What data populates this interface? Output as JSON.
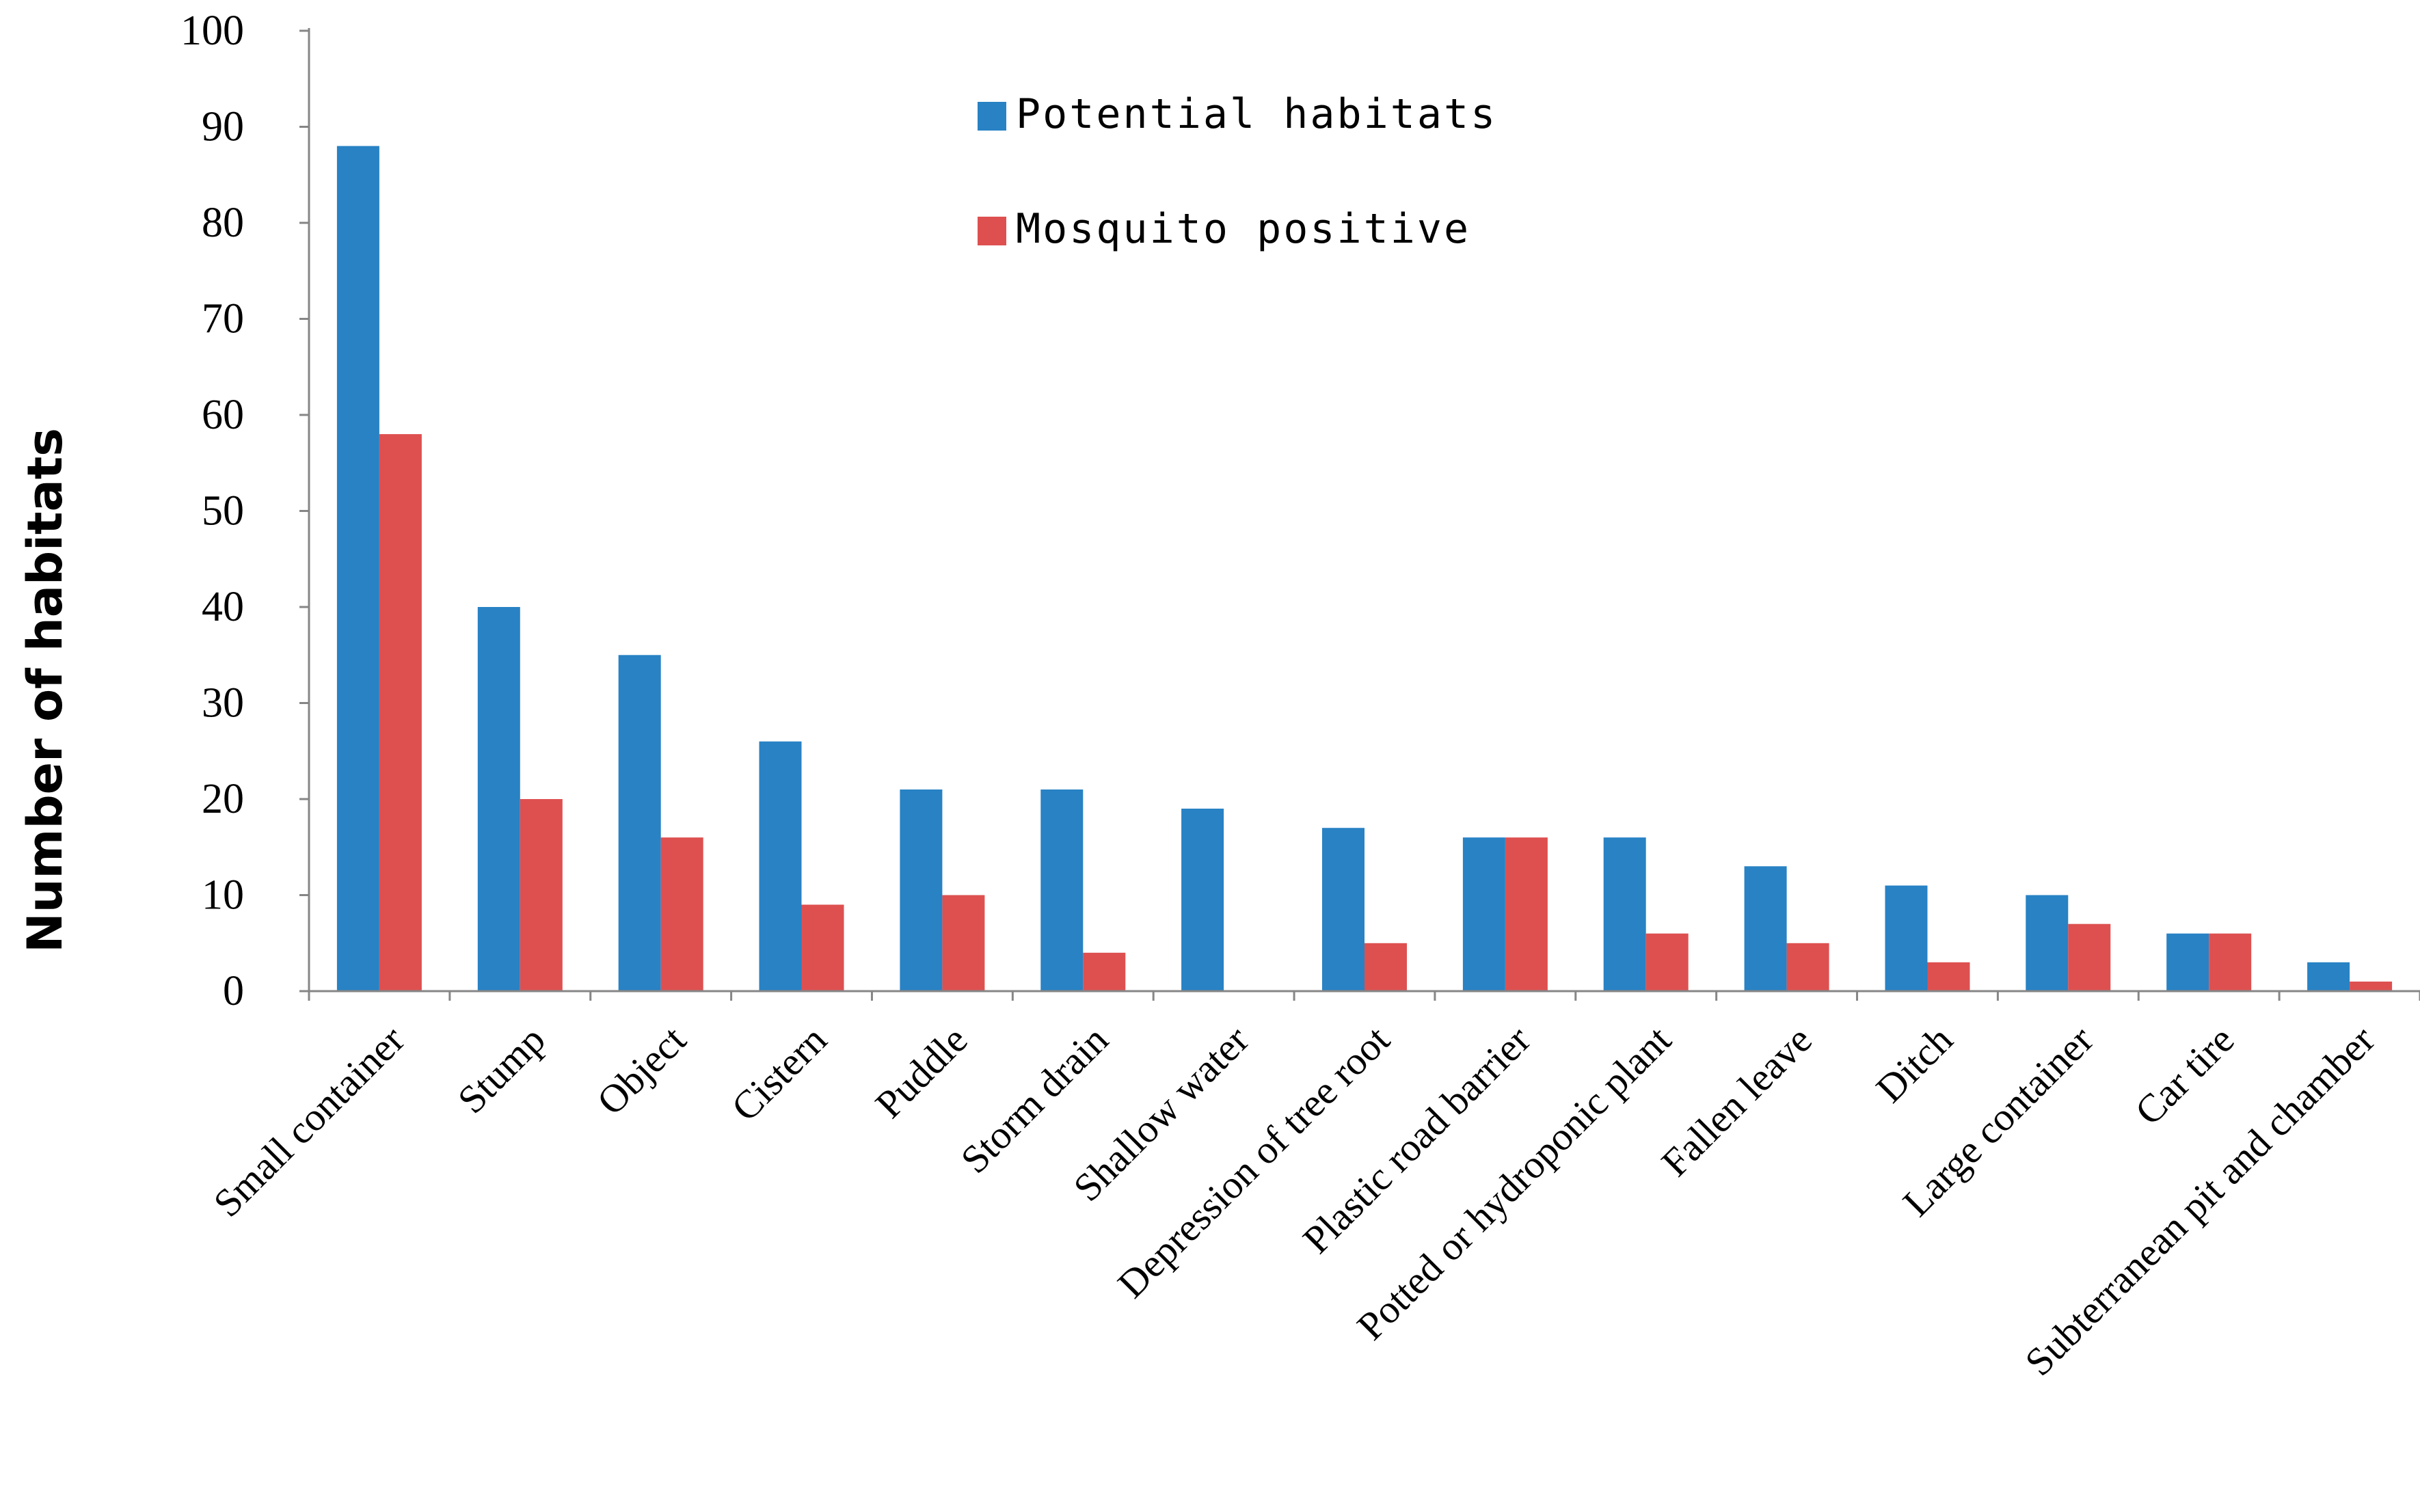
{
  "chart_data": {
    "type": "bar",
    "title": "",
    "xlabel": "",
    "ylabel": "Number of habitats",
    "ylim": [
      0,
      100
    ],
    "yticks": [
      0,
      10,
      20,
      30,
      40,
      50,
      60,
      70,
      80,
      90,
      100
    ],
    "grid": false,
    "legend_position": "top-center",
    "categories": [
      "Small container",
      "Stump",
      "Object",
      "Cistern",
      "Puddle",
      "Storm drain",
      "Shallow water",
      "Depression of tree root",
      "Plastic road barrier",
      "Potted or hydroponic plant",
      "Fallen leave",
      "Ditch",
      "Large container",
      "Car tire",
      "Subterranean pit and chamber"
    ],
    "series": [
      {
        "name": "Potential habitats",
        "color": "#2882C4",
        "values": [
          88,
          40,
          35,
          26,
          21,
          21,
          19,
          17,
          16,
          16,
          13,
          11,
          10,
          6,
          3
        ]
      },
      {
        "name": "Mosquito positive",
        "color": "#DE5050",
        "values": [
          58,
          20,
          16,
          9,
          10,
          4,
          0,
          5,
          16,
          6,
          5,
          3,
          7,
          6,
          1
        ]
      }
    ]
  }
}
